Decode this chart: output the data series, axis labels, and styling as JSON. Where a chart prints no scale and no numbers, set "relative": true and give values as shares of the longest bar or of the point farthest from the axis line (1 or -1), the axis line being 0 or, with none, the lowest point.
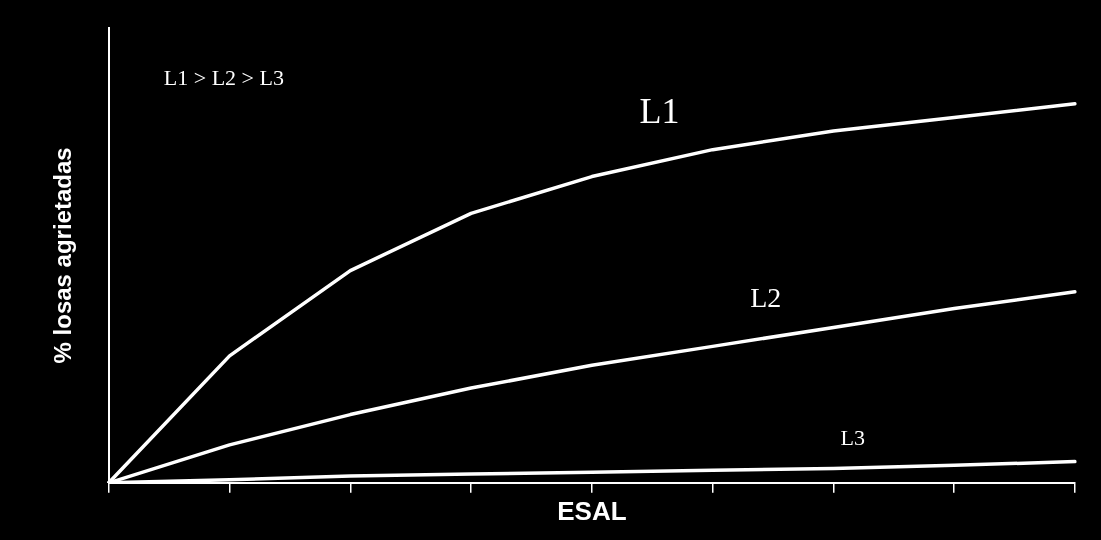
{
  "chart_data": {
    "type": "line",
    "relative": true,
    "xlabel": "ESAL",
    "ylabel": "% losas agrietadas",
    "annotations": [
      "L1 > L2 > L3"
    ],
    "grid": false,
    "legend": false,
    "tick_labels": false,
    "marker": "none",
    "line_style": "solid",
    "categories": [
      null,
      null,
      null,
      null,
      null,
      null,
      null,
      null,
      null
    ],
    "series": [
      {
        "name": "L1",
        "color": "#ffffff",
        "values": [
          0,
          0.335,
          0.56,
          0.711,
          0.808,
          0.879,
          0.928,
          0.964,
          1
        ]
      },
      {
        "name": "L2",
        "color": "#ffffff",
        "values": [
          0,
          0.1,
          0.18,
          0.25,
          0.31,
          0.36,
          0.41,
          0.46,
          0.504
        ]
      },
      {
        "name": "L3",
        "color": "#ffffff",
        "values": [
          0,
          0.008,
          0.018,
          0.023,
          0.028,
          0.033,
          0.038,
          0.046,
          0.056
        ]
      }
    ]
  }
}
